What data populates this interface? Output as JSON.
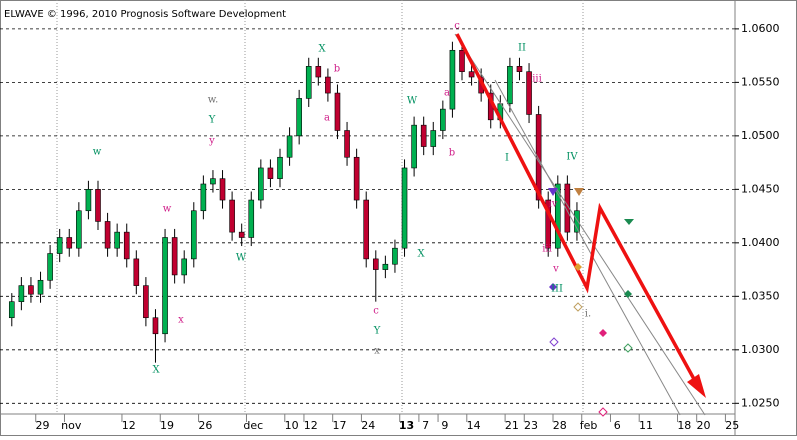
{
  "chart_data": {
    "type": "candlestick",
    "title": "ELWAVE © 1996, 2010 Prognosis Software Development",
    "categories": [
      null,
      null,
      null,
      "29",
      null,
      null,
      "nov",
      null,
      null,
      null,
      null,
      null,
      "12",
      null,
      null,
      null,
      "19",
      null,
      null,
      null,
      "26",
      null,
      null,
      null,
      null,
      "dec",
      null,
      null,
      null,
      "10",
      null,
      "12",
      null,
      null,
      "17",
      null,
      null,
      "24",
      null,
      null,
      null,
      "13",
      null,
      "7",
      null,
      "9",
      null,
      null,
      "14",
      null,
      null,
      null,
      "21",
      null,
      "23",
      null,
      null,
      "28",
      null,
      null,
      "feb",
      null,
      null,
      "6",
      null,
      null,
      "11",
      null,
      null,
      null,
      "18",
      null,
      "20",
      null,
      null,
      "25"
    ],
    "open": [
      1.033,
      1.0345,
      1.036,
      1.0352,
      1.0365,
      1.039,
      1.0405,
      1.0395,
      1.043,
      1.045,
      1.042,
      1.0395,
      1.041,
      1.0385,
      1.036,
      1.033,
      1.0315,
      1.0405,
      1.037,
      1.0385,
      1.043,
      1.0455,
      1.046,
      1.044,
      1.041,
      1.0405,
      1.044,
      1.047,
      1.046,
      1.048,
      1.05,
      1.0535,
      1.0565,
      1.0555,
      1.054,
      1.0505,
      1.048,
      1.044,
      1.0385,
      1.0375,
      1.038,
      1.0395,
      1.047,
      1.051,
      1.049,
      1.0505,
      1.0525,
      1.058,
      1.056,
      1.0555,
      1.054,
      1.0515,
      1.053,
      1.0565,
      1.056,
      1.052,
      1.044,
      1.0395,
      1.0455,
      1.041,
      null,
      null,
      null,
      null,
      null,
      null,
      null,
      null,
      null,
      null,
      null,
      null,
      null,
      null,
      null,
      null
    ],
    "high": [
      1.0353,
      1.0368,
      1.0368,
      1.0373,
      1.0398,
      1.0413,
      1.0413,
      1.0438,
      1.0458,
      1.0458,
      1.0428,
      1.0418,
      1.0418,
      1.0393,
      1.0368,
      1.0338,
      1.0413,
      1.0413,
      1.0393,
      1.0438,
      1.0463,
      1.0468,
      1.0468,
      1.0448,
      1.0418,
      1.0448,
      1.0478,
      1.0478,
      1.0488,
      1.0508,
      1.0543,
      1.0573,
      1.0573,
      1.0563,
      1.0548,
      1.0513,
      1.0488,
      1.0448,
      1.0393,
      1.0388,
      1.0403,
      1.0478,
      1.0518,
      1.0518,
      1.0513,
      1.0533,
      1.0588,
      1.0588,
      1.0568,
      1.0563,
      1.0548,
      1.0538,
      1.0573,
      1.0573,
      1.0568,
      1.0528,
      1.0448,
      1.0463,
      1.0463,
      1.0438,
      null,
      null,
      null,
      null,
      null,
      null,
      null,
      null,
      null,
      null,
      null,
      null,
      null,
      null,
      null,
      null
    ],
    "low": [
      1.0322,
      1.0337,
      1.0344,
      1.0344,
      1.0357,
      1.0382,
      1.0387,
      1.0387,
      1.0422,
      1.0412,
      1.0387,
      1.0387,
      1.0377,
      1.0352,
      1.0322,
      1.0288,
      1.0307,
      1.0362,
      1.0362,
      1.0377,
      1.0422,
      1.0447,
      1.0432,
      1.0402,
      1.0397,
      1.0397,
      1.0432,
      1.0452,
      1.0452,
      1.0472,
      1.0492,
      1.0527,
      1.0547,
      1.0532,
      1.0497,
      1.0472,
      1.0432,
      1.0377,
      1.0345,
      1.0367,
      1.0372,
      1.0387,
      1.0462,
      1.0482,
      1.0482,
      1.0497,
      1.0517,
      1.0552,
      1.0547,
      1.0532,
      1.0507,
      1.0507,
      1.0522,
      1.0552,
      1.0512,
      1.0432,
      1.0387,
      1.0387,
      1.0402,
      1.0402,
      null,
      null,
      null,
      null,
      null,
      null,
      null,
      null,
      null,
      null,
      null,
      null,
      null,
      null,
      null,
      null
    ],
    "close": [
      1.0345,
      1.036,
      1.0352,
      1.0365,
      1.039,
      1.0405,
      1.0395,
      1.043,
      1.045,
      1.042,
      1.0395,
      1.041,
      1.0385,
      1.036,
      1.033,
      1.0315,
      1.0405,
      1.037,
      1.0385,
      1.043,
      1.0455,
      1.046,
      1.044,
      1.041,
      1.0405,
      1.044,
      1.047,
      1.046,
      1.048,
      1.05,
      1.0535,
      1.0565,
      1.0555,
      1.054,
      1.0505,
      1.048,
      1.044,
      1.0385,
      1.0375,
      1.038,
      1.0395,
      1.047,
      1.051,
      1.049,
      1.0505,
      1.0525,
      1.058,
      1.056,
      1.0555,
      1.054,
      1.0515,
      1.053,
      1.0565,
      1.056,
      1.052,
      1.044,
      1.0395,
      1.0455,
      1.041,
      1.043,
      null,
      null,
      null,
      null,
      null,
      null,
      null,
      null,
      null,
      null,
      null,
      null,
      null,
      null,
      null,
      null
    ],
    "up_color": "#00b050",
    "down_color": "#c00030",
    "ylim": [
      1.024,
      1.0627
    ],
    "yticks": [
      {
        "value": 1.025,
        "label": "1.0250"
      },
      {
        "value": 1.03,
        "label": "1.0300"
      },
      {
        "value": 1.035,
        "label": "1.0350"
      },
      {
        "value": 1.04,
        "label": "1.0400"
      },
      {
        "value": 1.045,
        "label": "1.0450"
      },
      {
        "value": 1.05,
        "label": "1.0500"
      },
      {
        "value": 1.055,
        "label": "1.0550"
      },
      {
        "value": 1.06,
        "label": "1.0600"
      }
    ],
    "grid": true,
    "annotations": [
      {
        "text": "w",
        "color": "#009060"
      },
      {
        "text": "w",
        "color": "#d0208a"
      },
      {
        "text": "x",
        "color": "#d0208a"
      },
      {
        "text": "X",
        "color": "#009060"
      },
      {
        "text": "w.",
        "color": "#707070"
      },
      {
        "text": "Y",
        "color": "#009060"
      },
      {
        "text": "y",
        "color": "#d0208a"
      },
      {
        "text": "W",
        "color": "#009060"
      },
      {
        "text": "X",
        "color": "#009060"
      },
      {
        "text": "b",
        "color": "#d0208a"
      },
      {
        "text": "a",
        "color": "#d0208a"
      },
      {
        "text": "c",
        "color": "#d0208a"
      },
      {
        "text": "Y",
        "color": "#009060"
      },
      {
        "text": "x",
        "color": "#707070"
      },
      {
        "text": "W",
        "color": "#009060"
      },
      {
        "text": "a",
        "color": "#d0208a"
      },
      {
        "text": "b",
        "color": "#d0208a"
      },
      {
        "text": "X",
        "color": "#009060"
      },
      {
        "text": "c",
        "color": "#d0208a"
      },
      {
        "text": "II",
        "color": "#009060"
      },
      {
        "text": "iii",
        "color": "#d0208a"
      },
      {
        "text": "I",
        "color": "#009060"
      },
      {
        "text": "IV",
        "color": "#009060"
      },
      {
        "text": "iv",
        "color": "#d0208a"
      },
      {
        "text": "iii",
        "color": "#d0208a"
      },
      {
        "text": "v",
        "color": "#d0208a"
      },
      {
        "text": "III",
        "color": "#009060"
      },
      {
        "text": "i.",
        "color": "#707070"
      }
    ]
  }
}
